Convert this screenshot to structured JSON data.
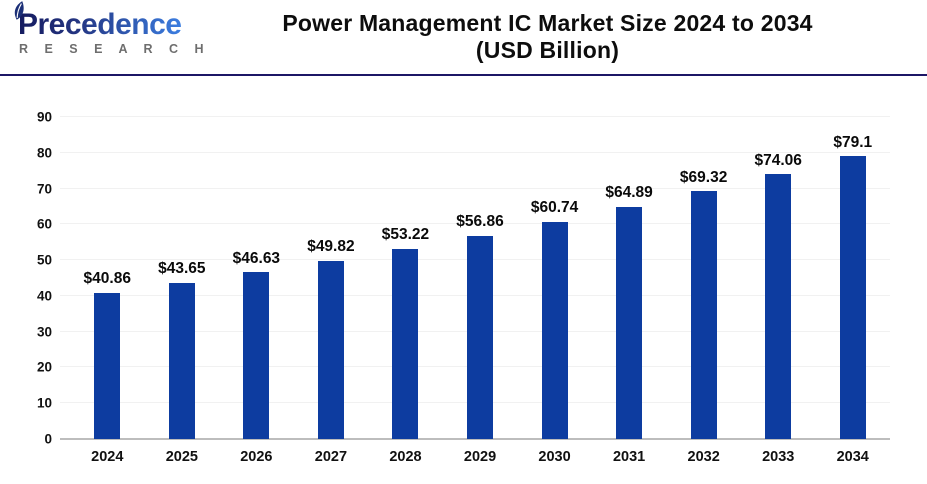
{
  "header": {
    "logo": {
      "brand": "Precedence",
      "subtitle": "R E S E A R C H"
    },
    "title_line1": "Power Management IC Market Size 2024 to 2034",
    "title_line2": "(USD Billion)"
  },
  "chart_data": {
    "type": "bar",
    "title": "Power Management IC Market Size 2024 to 2034 (USD Billion)",
    "categories": [
      "2024",
      "2025",
      "2026",
      "2027",
      "2028",
      "2029",
      "2030",
      "2031",
      "2032",
      "2033",
      "2034"
    ],
    "values": [
      40.86,
      43.65,
      46.63,
      49.82,
      53.22,
      56.86,
      60.74,
      64.89,
      69.32,
      74.06,
      79.1
    ],
    "data_labels": [
      "$40.86",
      "$43.65",
      "$46.63",
      "$49.82",
      "$53.22",
      "$56.86",
      "$60.74",
      "$64.89",
      "$69.32",
      "$74.06",
      "$79.1"
    ],
    "xlabel": "",
    "ylabel": "",
    "ylim": [
      0,
      90
    ],
    "yticks": [
      0,
      10,
      20,
      30,
      40,
      50,
      60,
      70,
      80,
      90
    ],
    "grid": true,
    "legend": false,
    "data_labels_position": "above-bars"
  },
  "colors": {
    "bar": "#0d3ca0",
    "divider": "#1c1666",
    "gridline": "#f1f1f1",
    "axis_line": "#bdbdbd",
    "title_text": "#0d0d0d",
    "logo_gradient_start": "#141a5e",
    "logo_gradient_end": "#3b7de0",
    "logo_subtitle": "#6e6e6e",
    "background": "#ffffff"
  }
}
